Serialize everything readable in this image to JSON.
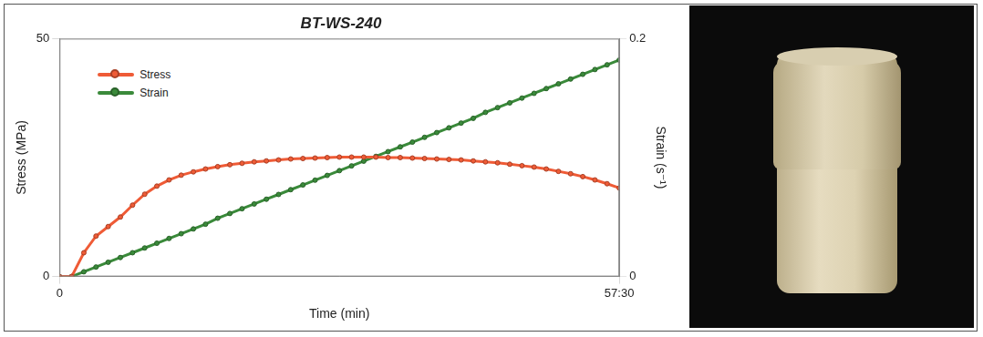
{
  "chart_data": {
    "type": "line",
    "title": "BT-WS-240",
    "x_label": "Time (min)",
    "y_label": "Stress (MPa)",
    "y2_label": "Strain (s⁻¹)",
    "x": [
      0,
      1.25,
      2.5,
      3.75,
      5,
      6.25,
      7.5,
      8.75,
      10,
      11.25,
      12.5,
      13.75,
      15,
      16.25,
      17.5,
      18.75,
      20,
      21.25,
      22.5,
      23.75,
      25,
      26.25,
      27.5,
      28.75,
      30,
      31.25,
      32.5,
      33.75,
      35,
      36.25,
      37.5,
      38.75,
      40,
      41.25,
      42.5,
      43.75,
      45,
      46.25,
      47.5,
      48.75,
      50,
      51.25,
      52.5,
      53.75,
      55,
      56.25,
      57.5
    ],
    "series": [
      {
        "name": "Stress",
        "color": "#ef5b36",
        "marker": "circle",
        "line_style": "solid",
        "values": [
          0,
          0,
          5,
          8.5,
          10.5,
          12.5,
          15,
          17.3,
          19,
          20.3,
          21.3,
          22,
          22.6,
          23.1,
          23.5,
          23.8,
          24.1,
          24.3,
          24.5,
          24.7,
          24.8,
          24.9,
          25,
          25.1,
          25.1,
          25.1,
          25.1,
          25,
          25,
          24.9,
          24.8,
          24.7,
          24.6,
          24.5,
          24.3,
          24.1,
          23.9,
          23.6,
          23.3,
          23,
          22.6,
          22.1,
          21.6,
          21,
          20.3,
          19.5,
          18.6
        ]
      },
      {
        "name": "Strain",
        "color": "#3a8a3a",
        "marker": "circle",
        "line_style": "solid",
        "axis": "y2",
        "values": [
          0,
          0,
          0.004,
          0.008,
          0.012,
          0.016,
          0.02,
          0.024,
          0.028,
          0.032,
          0.036,
          0.04,
          0.044,
          0.049,
          0.053,
          0.057,
          0.061,
          0.065,
          0.069,
          0.073,
          0.077,
          0.081,
          0.085,
          0.089,
          0.093,
          0.097,
          0.101,
          0.105,
          0.109,
          0.113,
          0.117,
          0.121,
          0.125,
          0.129,
          0.133,
          0.138,
          0.142,
          0.146,
          0.15,
          0.154,
          0.158,
          0.162,
          0.166,
          0.17,
          0.174,
          0.178,
          0.182
        ]
      }
    ],
    "xlim": [
      0,
      57.5
    ],
    "xticks": [
      0,
      {
        "value": 57.5,
        "label": "57:30"
      }
    ],
    "ylim": [
      0,
      50
    ],
    "yticks": [
      0,
      50
    ],
    "y2lim": [
      0,
      0.2
    ],
    "y2ticks": [
      0,
      0.2
    ],
    "grid": true,
    "legend": "upper left"
  }
}
